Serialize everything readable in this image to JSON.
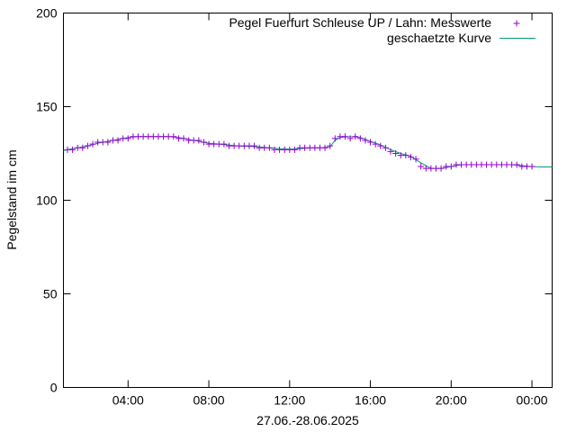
{
  "chart_data": {
    "type": "scatter",
    "xlabel": "27.06.-28.06.2025",
    "ylabel": "Pegelstand im cm",
    "x_unit": "hours",
    "xlim": [
      0.8,
      25.0
    ],
    "ylim": [
      0,
      200
    ],
    "x_ticks": [
      {
        "value": 4,
        "label": "04:00"
      },
      {
        "value": 8,
        "label": "08:00"
      },
      {
        "value": 12,
        "label": "12:00"
      },
      {
        "value": 16,
        "label": "16:00"
      },
      {
        "value": 20,
        "label": "20:00"
      },
      {
        "value": 24,
        "label": "00:00"
      }
    ],
    "y_ticks": [
      {
        "value": 0,
        "label": "0"
      },
      {
        "value": 50,
        "label": "50"
      },
      {
        "value": 100,
        "label": "100"
      },
      {
        "value": 150,
        "label": "150"
      },
      {
        "value": 200,
        "label": "200"
      }
    ],
    "grid": false,
    "legend_position": "top-right",
    "series": [
      {
        "name": "Pegel Fuerfurt Schleuse UP / Lahn: Messwerte",
        "style": "points",
        "marker": "+",
        "color": "#9400d3",
        "x": [
          1.0,
          1.25,
          1.5,
          1.75,
          2.0,
          2.25,
          2.5,
          2.75,
          3.0,
          3.25,
          3.5,
          3.75,
          4.0,
          4.25,
          4.5,
          4.75,
          5.0,
          5.25,
          5.5,
          5.75,
          6.0,
          6.25,
          6.5,
          6.75,
          7.0,
          7.25,
          7.5,
          7.75,
          8.0,
          8.25,
          8.5,
          8.75,
          9.0,
          9.25,
          9.5,
          9.75,
          10.0,
          10.25,
          10.5,
          10.75,
          11.0,
          11.25,
          11.5,
          11.75,
          12.0,
          12.25,
          12.5,
          12.75,
          13.0,
          13.25,
          13.5,
          13.75,
          14.0,
          14.25,
          14.5,
          14.75,
          15.0,
          15.25,
          15.5,
          15.75,
          16.0,
          16.25,
          16.5,
          16.75,
          17.0,
          17.25,
          17.5,
          17.75,
          18.0,
          18.25,
          18.5,
          18.75,
          19.0,
          19.25,
          19.5,
          19.75,
          20.0,
          20.25,
          20.5,
          20.75,
          21.0,
          21.25,
          21.5,
          21.75,
          22.0,
          22.25,
          22.5,
          22.75,
          23.0,
          23.25,
          23.5,
          23.75,
          24.0
        ],
        "y": [
          127,
          127,
          128,
          128,
          129,
          130,
          131,
          131,
          131,
          132,
          132,
          133,
          133,
          134,
          134,
          134,
          134,
          134,
          134,
          134,
          134,
          134,
          133,
          133,
          132,
          132,
          132,
          131,
          130,
          130,
          130,
          130,
          129,
          129,
          129,
          129,
          129,
          129,
          128,
          128,
          128,
          127,
          127,
          127,
          127,
          127,
          128,
          128,
          128,
          128,
          128,
          128,
          129,
          133,
          134,
          134,
          133,
          134,
          133,
          132,
          131,
          130,
          129,
          128,
          126,
          125,
          124,
          124,
          123,
          122,
          118,
          117,
          117,
          117,
          117,
          118,
          118,
          119,
          119,
          119,
          119,
          119,
          119,
          119,
          119,
          119,
          119,
          119,
          119,
          119,
          118,
          118,
          118
        ]
      },
      {
        "name": "geschaetzte Kurve",
        "style": "line",
        "color": "#009e73",
        "x": [
          0.8,
          1.0,
          1.5,
          2.0,
          2.5,
          3.0,
          3.5,
          4.0,
          4.5,
          5.0,
          5.5,
          6.0,
          6.5,
          7.0,
          7.5,
          8.0,
          8.5,
          9.0,
          9.5,
          10.0,
          10.5,
          11.0,
          11.5,
          12.0,
          12.5,
          13.0,
          13.5,
          14.0,
          14.25,
          14.5,
          15.0,
          15.5,
          16.0,
          16.5,
          17.0,
          17.5,
          18.0,
          18.5,
          19.0,
          19.5,
          20.0,
          20.5,
          21.0,
          21.5,
          22.0,
          22.5,
          23.0,
          23.5,
          24.0,
          24.5,
          25.0
        ],
        "y": [
          126.5,
          127,
          128,
          129,
          130.5,
          131.5,
          132.5,
          133.5,
          134,
          134,
          134,
          134,
          133.5,
          132.5,
          131.5,
          130.5,
          130,
          129.5,
          129,
          128.8,
          128.5,
          128,
          127.5,
          127.3,
          127.5,
          128,
          128,
          128.5,
          132,
          133.5,
          134,
          133.5,
          131.5,
          129.5,
          127,
          125,
          123.5,
          120,
          117,
          117,
          118,
          119,
          119,
          119,
          119,
          119,
          119,
          118.5,
          118,
          117.8,
          117.8
        ]
      }
    ]
  }
}
